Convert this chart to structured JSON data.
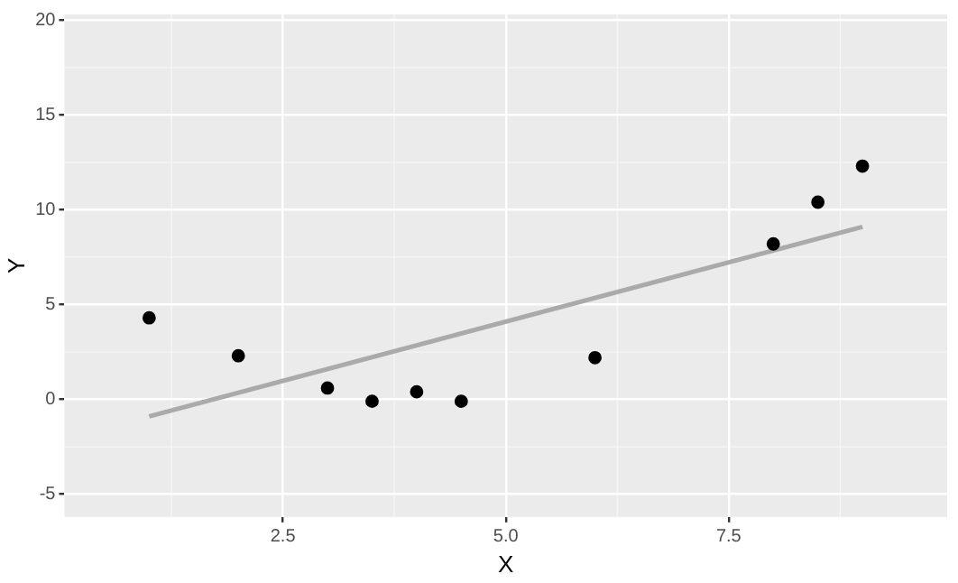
{
  "chart_data": {
    "type": "scatter",
    "xlabel": "X",
    "ylabel": "Y",
    "xlim": [
      0.05,
      9.95
    ],
    "xticks": [
      {
        "value": 2.5,
        "label": "2.5"
      },
      {
        "value": 5,
        "label": "5.0"
      },
      {
        "value": 7.5,
        "label": "7.5"
      }
    ],
    "ylim": [
      -6.2,
      20.3
    ],
    "yticks": [
      -5,
      0,
      5,
      10,
      15,
      20
    ],
    "grid": true,
    "legend": false,
    "marker": "circle",
    "series": [
      {
        "color": "#000000",
        "x": [
          1,
          2,
          3,
          3.5,
          4,
          4.5,
          6,
          8,
          8.5,
          9
        ],
        "values": [
          4.3,
          2.3,
          0.6,
          -0.1,
          0.4,
          -0.1,
          2.2,
          8.2,
          10.4,
          12.3
        ]
      },
      {
        "type": "line",
        "color": "#aaaaaa",
        "x": [
          1,
          9
        ],
        "values": [
          -0.9,
          9.1
        ],
        "marker": "none",
        "line_style": "solid"
      }
    ]
  }
}
